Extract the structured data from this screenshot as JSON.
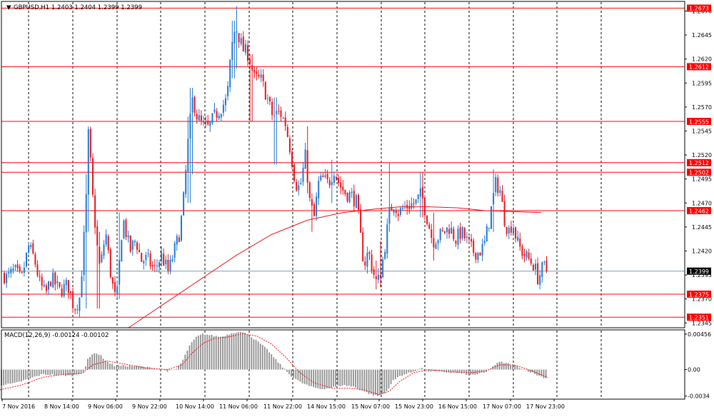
{
  "colors": {
    "background": "#ffffff",
    "frame": "#000000",
    "grid": "#000000",
    "bull": "#1e78d2",
    "bear": "#e8141e",
    "ma": "#e8141e",
    "level_line": "#ff0000",
    "level_label_bg": "#ff0000",
    "level_label_text": "#ffffff",
    "current_line": "#7f97b8",
    "current_label_bg": "#000000",
    "current_label_text": "#ffffff",
    "macd_hist": "#909090",
    "macd_signal": "#e8141e",
    "text": "#000000"
  },
  "chart_data": [
    {
      "type": "candlestick",
      "header": "GBPUSD,H1  1.2403 1.2404 1.2399 1.2399",
      "symbol": "GBPUSD",
      "timeframe": "H1",
      "ohlc_readout": [
        1.2403,
        1.2404,
        1.2399,
        1.2399
      ],
      "ylim": [
        1.234,
        1.268
      ],
      "y_tick_labels": [
        "1.2670",
        "1.2645",
        "1.2620",
        "1.2595",
        "1.2570",
        "1.2545",
        "1.2520",
        "1.2495",
        "1.2470",
        "1.2445",
        "1.2420",
        "1.2395",
        "1.2370",
        "1.2345"
      ],
      "x_tick_labels": [
        "7 Nov 2016",
        "8 Nov 14:00",
        "9 Nov 06:00",
        "9 Nov 22:00",
        "10 Nov 14:00",
        "11 Nov 06:00",
        "11 Nov 22:00",
        "14 Nov 15:00",
        "15 Nov 07:00",
        "15 Nov 23:00",
        "16 Nov 15:00",
        "17 Nov 07:00",
        "17 Nov 23:00"
      ],
      "grid": "vertical dashed",
      "current_price": 1.2399,
      "current_price_label": "1.2399",
      "levels": [
        {
          "value": 1.2673,
          "label": "1.2673"
        },
        {
          "value": 1.2612,
          "label": "1.2612"
        },
        {
          "value": 1.2555,
          "label": "1.2555"
        },
        {
          "value": 1.2512,
          "label": "1.2512"
        },
        {
          "value": 1.2502,
          "label": "1.2502"
        },
        {
          "value": 1.2462,
          "label": "1.2462"
        },
        {
          "value": 1.2375,
          "label": "1.2375"
        },
        {
          "value": 1.2351,
          "label": "1.2351"
        }
      ],
      "close_path": [
        [
          0,
          1.2398
        ],
        [
          10,
          1.2392
        ],
        [
          20,
          1.24
        ],
        [
          30,
          1.239
        ],
        [
          40,
          1.2425
        ],
        [
          48,
          1.2412
        ],
        [
          56,
          1.2385
        ],
        [
          64,
          1.2375
        ],
        [
          72,
          1.2392
        ],
        [
          84,
          1.2378
        ],
        [
          95,
          1.2385
        ],
        [
          104,
          1.236
        ],
        [
          112,
          1.2372
        ],
        [
          120,
          1.246
        ],
        [
          124,
          1.2545
        ],
        [
          130,
          1.2475
        ],
        [
          136,
          1.2425
        ],
        [
          140,
          1.24
        ],
        [
          148,
          1.244
        ],
        [
          156,
          1.239
        ],
        [
          163,
          1.2365
        ],
        [
          172,
          1.2455
        ],
        [
          182,
          1.242
        ],
        [
          190,
          1.2432
        ],
        [
          198,
          1.241
        ],
        [
          206,
          1.2412
        ],
        [
          216,
          1.24
        ],
        [
          226,
          1.2415
        ],
        [
          236,
          1.2398
        ],
        [
          244,
          1.242
        ],
        [
          252,
          1.244
        ],
        [
          258,
          1.248
        ],
        [
          264,
          1.254
        ],
        [
          270,
          1.258
        ],
        [
          276,
          1.256
        ],
        [
          284,
          1.255
        ],
        [
          292,
          1.2548
        ],
        [
          300,
          1.256
        ],
        [
          310,
          1.257
        ],
        [
          318,
          1.2578
        ],
        [
          324,
          1.263
        ],
        [
          330,
          1.2655
        ],
        [
          340,
          1.263
        ],
        [
          348,
          1.2625
        ],
        [
          356,
          1.26
        ],
        [
          366,
          1.2598
        ],
        [
          374,
          1.258
        ],
        [
          382,
          1.256
        ],
        [
          392,
          1.2565
        ],
        [
          400,
          1.2552
        ],
        [
          408,
          1.252
        ],
        [
          414,
          1.249
        ],
        [
          420,
          1.2485
        ],
        [
          428,
          1.252
        ],
        [
          434,
          1.247
        ],
        [
          440,
          1.2455
        ],
        [
          446,
          1.249
        ],
        [
          452,
          1.2495
        ],
        [
          460,
          1.249
        ],
        [
          468,
          1.2505
        ],
        [
          476,
          1.2488
        ],
        [
          484,
          1.248
        ],
        [
          492,
          1.2478
        ],
        [
          500,
          1.247
        ],
        [
          504,
          1.244
        ],
        [
          510,
          1.2405
        ],
        [
          516,
          1.242
        ],
        [
          522,
          1.24
        ],
        [
          528,
          1.2385
        ],
        [
          534,
          1.24
        ],
        [
          540,
          1.243
        ],
        [
          546,
          1.2462
        ],
        [
          552,
          1.247
        ],
        [
          558,
          1.246
        ],
        [
          566,
          1.2465
        ],
        [
          574,
          1.2468
        ],
        [
          582,
          1.247
        ],
        [
          590,
          1.248
        ],
        [
          598,
          1.2455
        ],
        [
          606,
          1.243
        ],
        [
          614,
          1.2435
        ],
        [
          622,
          1.244
        ],
        [
          630,
          1.2445
        ],
        [
          638,
          1.2432
        ],
        [
          646,
          1.244
        ],
        [
          654,
          1.243
        ],
        [
          662,
          1.242
        ],
        [
          670,
          1.2418
        ],
        [
          678,
          1.2425
        ],
        [
          686,
          1.2455
        ],
        [
          694,
          1.249
        ],
        [
          700,
          1.2485
        ],
        [
          706,
          1.2455
        ],
        [
          712,
          1.244
        ],
        [
          718,
          1.245
        ],
        [
          724,
          1.243
        ],
        [
          730,
          1.242
        ],
        [
          736,
          1.2415
        ],
        [
          742,
          1.241
        ],
        [
          748,
          1.2405
        ],
        [
          754,
          1.239
        ],
        [
          758,
          1.24
        ],
        [
          763,
          1.2404
        ],
        [
          766,
          1.2399
        ]
      ],
      "spikes": [
        {
          "x": 120,
          "high": 1.25,
          "low": 1.236
        },
        {
          "x": 124,
          "high": 1.255,
          "low": 1.244
        },
        {
          "x": 138,
          "high": 1.244,
          "low": 1.236
        },
        {
          "x": 168,
          "high": 1.246,
          "low": 1.237
        },
        {
          "x": 265,
          "high": 1.256,
          "low": 1.247
        },
        {
          "x": 268,
          "high": 1.259,
          "low": 1.25
        },
        {
          "x": 327,
          "high": 1.266,
          "low": 1.26
        },
        {
          "x": 332,
          "high": 1.2675,
          "low": 1.261
        },
        {
          "x": 352,
          "high": 1.2625,
          "low": 1.2555
        },
        {
          "x": 386,
          "high": 1.258,
          "low": 1.251
        },
        {
          "x": 430,
          "high": 1.255,
          "low": 1.248
        },
        {
          "x": 437,
          "high": 1.248,
          "low": 1.244
        },
        {
          "x": 464,
          "high": 1.2515,
          "low": 1.247
        },
        {
          "x": 527,
          "high": 1.241,
          "low": 1.238
        },
        {
          "x": 533,
          "high": 1.243,
          "low": 1.2382
        },
        {
          "x": 545,
          "high": 1.2512,
          "low": 1.244
        },
        {
          "x": 590,
          "high": 1.2502,
          "low": 1.2455
        },
        {
          "x": 607,
          "high": 1.246,
          "low": 1.241
        },
        {
          "x": 692,
          "high": 1.2505,
          "low": 1.244
        },
        {
          "x": 754,
          "high": 1.2405,
          "low": 1.2388
        }
      ],
      "moving_average": [
        [
          180,
          1.234
        ],
        [
          230,
          1.2365
        ],
        [
          280,
          1.239
        ],
        [
          330,
          1.2415
        ],
        [
          380,
          1.2437
        ],
        [
          430,
          1.2452
        ],
        [
          480,
          1.246
        ],
        [
          530,
          1.2464
        ],
        [
          560,
          1.2466
        ],
        [
          600,
          1.2466
        ],
        [
          640,
          1.2465
        ],
        [
          680,
          1.2462
        ],
        [
          720,
          1.2461
        ],
        [
          758,
          1.246
        ]
      ]
    },
    {
      "type": "bar",
      "header": "MACD(12,26,9) -0.00124 -0.00102",
      "indicator": "MACD(12,26,9)",
      "values_readout": [
        -0.00124,
        -0.00102
      ],
      "ylim": [
        -0.0038,
        0.0051
      ],
      "y_tick_labels": [
        "0.00456",
        "0.00",
        "-0.0034"
      ],
      "histogram": [
        [
          0,
          -0.002
        ],
        [
          20,
          -0.0018
        ],
        [
          40,
          -0.0012
        ],
        [
          60,
          -0.0006
        ],
        [
          80,
          -0.0007
        ],
        [
          100,
          -0.0008
        ],
        [
          112,
          -0.0005
        ],
        [
          118,
          -0.0002
        ],
        [
          122,
          0.0012
        ],
        [
          132,
          0.0022
        ],
        [
          140,
          0.0019
        ],
        [
          150,
          0.001
        ],
        [
          160,
          0.0005
        ],
        [
          175,
          0.0005
        ],
        [
          195,
          0.0004
        ],
        [
          215,
          0.0002
        ],
        [
          235,
          -0.0002
        ],
        [
          245,
          -0.0001
        ],
        [
          255,
          0.001
        ],
        [
          265,
          0.003
        ],
        [
          275,
          0.0042
        ],
        [
          285,
          0.0046
        ],
        [
          295,
          0.0044
        ],
        [
          310,
          0.0042
        ],
        [
          325,
          0.0047
        ],
        [
          335,
          0.0049
        ],
        [
          345,
          0.0046
        ],
        [
          355,
          0.004
        ],
        [
          365,
          0.0033
        ],
        [
          375,
          0.0025
        ],
        [
          385,
          0.0014
        ],
        [
          395,
          0.0004
        ],
        [
          405,
          -0.0006
        ],
        [
          420,
          -0.0016
        ],
        [
          435,
          -0.0022
        ],
        [
          450,
          -0.0025
        ],
        [
          465,
          -0.0023
        ],
        [
          480,
          -0.002
        ],
        [
          495,
          -0.0022
        ],
        [
          510,
          -0.0028
        ],
        [
          520,
          -0.0032
        ],
        [
          530,
          -0.0034
        ],
        [
          540,
          -0.003
        ],
        [
          550,
          -0.0015
        ],
        [
          560,
          -0.0008
        ],
        [
          575,
          -0.0004
        ],
        [
          590,
          0.0002
        ],
        [
          600,
          -0.0002
        ],
        [
          620,
          -0.0003
        ],
        [
          640,
          -0.0004
        ],
        [
          660,
          -0.0007
        ],
        [
          680,
          -0.0004
        ],
        [
          690,
          0.0004
        ],
        [
          700,
          0.001
        ],
        [
          710,
          0.0008
        ],
        [
          725,
          0.0004
        ],
        [
          740,
          -0.0002
        ],
        [
          755,
          -0.0008
        ],
        [
          767,
          -0.0012
        ]
      ],
      "signal": [
        [
          0,
          -0.0026
        ],
        [
          30,
          -0.002
        ],
        [
          60,
          -0.001
        ],
        [
          90,
          -0.0006
        ],
        [
          115,
          -0.0005
        ],
        [
          130,
          0.0006
        ],
        [
          150,
          0.0011
        ],
        [
          175,
          0.0007
        ],
        [
          205,
          0.0002
        ],
        [
          235,
          0.0
        ],
        [
          255,
          0.0006
        ],
        [
          270,
          0.0022
        ],
        [
          285,
          0.0034
        ],
        [
          300,
          0.004
        ],
        [
          320,
          0.0042
        ],
        [
          340,
          0.0046
        ],
        [
          360,
          0.0043
        ],
        [
          380,
          0.0033
        ],
        [
          400,
          0.0016
        ],
        [
          420,
          -0.0004
        ],
        [
          440,
          -0.0017
        ],
        [
          465,
          -0.0024
        ],
        [
          490,
          -0.0024
        ],
        [
          510,
          -0.0026
        ],
        [
          530,
          -0.0032
        ],
        [
          545,
          -0.0028
        ],
        [
          560,
          -0.0015
        ],
        [
          580,
          -0.0004
        ],
        [
          600,
          0.0
        ],
        [
          630,
          -0.0003
        ],
        [
          660,
          -0.0004
        ],
        [
          680,
          -0.0002
        ],
        [
          700,
          0.0006
        ],
        [
          720,
          0.0006
        ],
        [
          740,
          0.0
        ],
        [
          767,
          -0.001
        ]
      ]
    }
  ]
}
